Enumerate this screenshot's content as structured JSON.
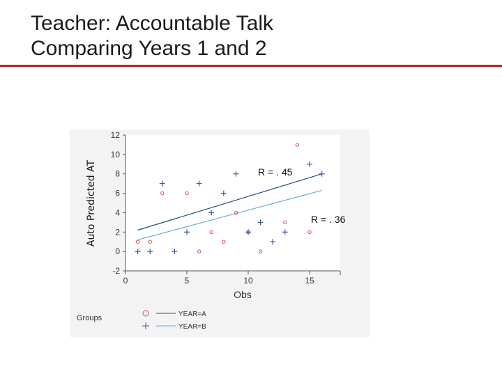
{
  "slide": {
    "title_line1": "Teacher: Accountable Talk",
    "title_line2": "Comparing Years 1 and 2",
    "rule_color": "#c0202a"
  },
  "annotations": {
    "r_year1": "R = . 45",
    "r_year2": "R = . 36"
  },
  "chart_data": {
    "type": "scatter",
    "title": "",
    "xlabel": "Obs",
    "ylabel": "Auto Predicted AT",
    "xlim": [
      0,
      17.5
    ],
    "ylim": [
      -2,
      12
    ],
    "xticks": [
      0,
      5,
      10,
      15
    ],
    "xtick_labels": [
      "0",
      "5",
      "10",
      "15"
    ],
    "yticks": [
      -2,
      0,
      2,
      4,
      6,
      8,
      10,
      12
    ],
    "ytick_labels": [
      "-2",
      "0",
      "2",
      "4",
      "6",
      "8",
      "10",
      "12"
    ],
    "grid": false,
    "legend_title": "Groups",
    "legend_position": "bottom-left",
    "series": [
      {
        "name": "YEAR=A",
        "marker": "circle",
        "color": "#d05050",
        "line_color": "#2a4a80",
        "points": [
          [
            1,
            1
          ],
          [
            2,
            1
          ],
          [
            3,
            6
          ],
          [
            5,
            6
          ],
          [
            6,
            0
          ],
          [
            7,
            2
          ],
          [
            8,
            1
          ],
          [
            9,
            4
          ],
          [
            10,
            2
          ],
          [
            11,
            0
          ],
          [
            13,
            3
          ],
          [
            14,
            11
          ],
          [
            15,
            2
          ]
        ],
        "fit": [
          [
            1,
            2.2
          ],
          [
            16,
            8
          ]
        ]
      },
      {
        "name": "YEAR=B",
        "marker": "plus",
        "color": "#3a5a90",
        "line_color": "#6aaad8",
        "points": [
          [
            1,
            0
          ],
          [
            2,
            0
          ],
          [
            3,
            7
          ],
          [
            4,
            0
          ],
          [
            5,
            2
          ],
          [
            6,
            7
          ],
          [
            7,
            4
          ],
          [
            8,
            6
          ],
          [
            9,
            8
          ],
          [
            10,
            2
          ],
          [
            11,
            3
          ],
          [
            12,
            1
          ],
          [
            13,
            2
          ],
          [
            15,
            9
          ],
          [
            16,
            8
          ]
        ],
        "fit": [
          [
            1,
            1.2
          ],
          [
            16,
            6.3
          ]
        ]
      }
    ]
  }
}
